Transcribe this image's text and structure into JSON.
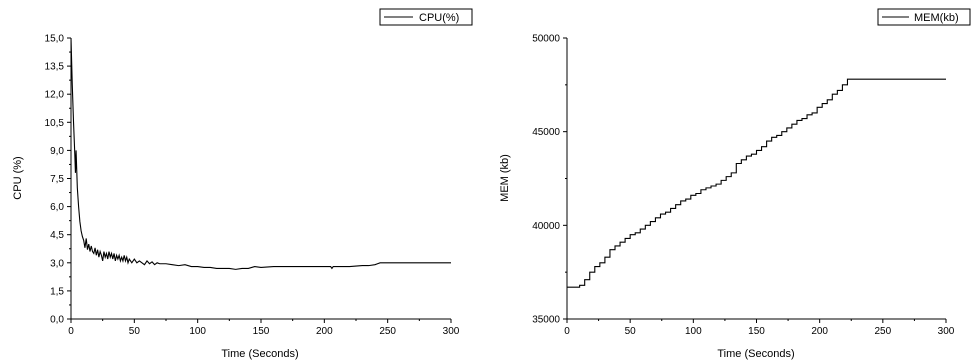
{
  "chart_data": [
    {
      "type": "line",
      "title": "",
      "xlabel": "Time (Seconds)",
      "ylabel": "CPU (%)",
      "xlim": [
        0,
        300
      ],
      "ylim": [
        0,
        15
      ],
      "x_ticks": [
        "0",
        "50",
        "100",
        "150",
        "200",
        "250",
        "300"
      ],
      "y_ticks": [
        "0,0",
        "1,5",
        "3,0",
        "4,5",
        "6,0",
        "7,5",
        "9,0",
        "10,5",
        "12,0",
        "13,5",
        "15,0"
      ],
      "grid": false,
      "legend_position": "top-right",
      "series": [
        {
          "name": "CPU(%)",
          "color": "#000000",
          "x": [
            0,
            1,
            2,
            3,
            3.5,
            4,
            4.5,
            5,
            6,
            7,
            8,
            9,
            10,
            11,
            12,
            13,
            14,
            15,
            16,
            17,
            18,
            19,
            20,
            21,
            22,
            23,
            24,
            25,
            26,
            27,
            28,
            29,
            30,
            31,
            32,
            33,
            34,
            35,
            36,
            37,
            38,
            39,
            40,
            41,
            42,
            43,
            44,
            45,
            46,
            47,
            48,
            50,
            52,
            54,
            56,
            58,
            60,
            62,
            64,
            66,
            68,
            70,
            75,
            80,
            85,
            90,
            95,
            100,
            105,
            110,
            115,
            120,
            125,
            130,
            135,
            140,
            145,
            150,
            160,
            170,
            175,
            180,
            190,
            200,
            205,
            206,
            207,
            210,
            220,
            230,
            235,
            240,
            242,
            244,
            246,
            250,
            260,
            270,
            280,
            290,
            300
          ],
          "y": [
            15.0,
            12.5,
            10.5,
            8.8,
            7.8,
            9.0,
            8.0,
            7.0,
            6.0,
            5.2,
            4.7,
            4.4,
            4.2,
            3.8,
            4.3,
            3.7,
            4.0,
            3.6,
            3.9,
            3.6,
            3.5,
            3.8,
            3.4,
            3.7,
            3.3,
            3.6,
            3.4,
            3.1,
            3.6,
            3.3,
            3.5,
            3.2,
            3.6,
            3.3,
            3.5,
            3.2,
            3.5,
            3.1,
            3.4,
            3.2,
            3.4,
            3.1,
            3.3,
            3.1,
            3.4,
            3.1,
            3.3,
            3.0,
            3.2,
            3.1,
            3.0,
            3.2,
            3.0,
            3.1,
            3.0,
            2.9,
            3.1,
            2.95,
            3.05,
            2.9,
            3.0,
            2.95,
            2.95,
            2.9,
            2.85,
            2.9,
            2.8,
            2.8,
            2.75,
            2.75,
            2.7,
            2.7,
            2.7,
            2.65,
            2.7,
            2.7,
            2.8,
            2.75,
            2.8,
            2.8,
            2.8,
            2.8,
            2.8,
            2.8,
            2.8,
            2.7,
            2.8,
            2.8,
            2.8,
            2.85,
            2.85,
            2.9,
            2.95,
            3.0,
            3.0,
            3.0,
            3.0,
            3.0,
            3.0,
            3.0,
            3.0
          ]
        }
      ]
    },
    {
      "type": "line",
      "title": "",
      "xlabel": "Time (Seconds)",
      "ylabel": "MEM (kb)",
      "xlim": [
        0,
        300
      ],
      "ylim": [
        35000,
        50000
      ],
      "x_ticks": [
        "0",
        "50",
        "100",
        "150",
        "200",
        "250",
        "300"
      ],
      "y_ticks": [
        "35000",
        "40000",
        "45000",
        "50000"
      ],
      "grid": false,
      "legend_position": "top-right",
      "series": [
        {
          "name": "MEM(kb)",
          "color": "#000000",
          "step": true,
          "x": [
            0,
            10,
            14,
            18,
            22,
            26,
            30,
            34,
            38,
            42,
            46,
            50,
            54,
            58,
            62,
            66,
            70,
            74,
            78,
            82,
            86,
            90,
            94,
            98,
            102,
            106,
            110,
            114,
            118,
            122,
            126,
            130,
            134,
            138,
            142,
            146,
            150,
            154,
            158,
            162,
            166,
            170,
            174,
            178,
            182,
            186,
            190,
            194,
            198,
            202,
            206,
            210,
            214,
            218,
            222,
            226,
            230,
            234,
            238,
            242,
            246,
            250,
            260,
            270,
            280,
            290,
            300
          ],
          "y": [
            36700,
            36800,
            37100,
            37500,
            37800,
            38000,
            38300,
            38700,
            38900,
            39100,
            39300,
            39500,
            39600,
            39800,
            40000,
            40200,
            40400,
            40600,
            40700,
            40900,
            41100,
            41300,
            41400,
            41600,
            41700,
            41900,
            42000,
            42100,
            42200,
            42400,
            42600,
            42800,
            43300,
            43500,
            43700,
            43800,
            44000,
            44200,
            44500,
            44700,
            44800,
            45000,
            45200,
            45400,
            45600,
            45700,
            45900,
            46000,
            46300,
            46500,
            46700,
            47000,
            47200,
            47500,
            47800,
            47800,
            47800,
            47800,
            47800,
            47800,
            47800,
            47800,
            47800,
            47800,
            47800,
            47800,
            47800
          ]
        }
      ]
    }
  ]
}
